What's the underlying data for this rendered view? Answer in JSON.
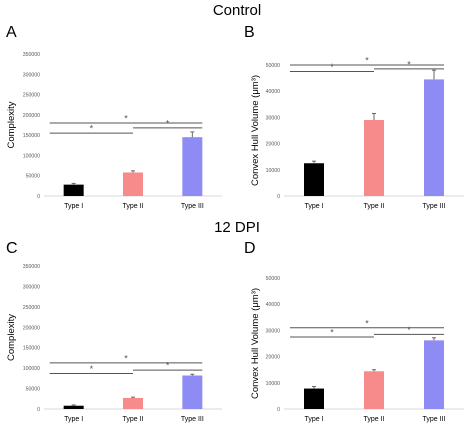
{
  "sections": [
    {
      "title": "Control"
    },
    {
      "title": "12 DPI"
    }
  ],
  "panels": [
    {
      "letter": "A"
    },
    {
      "letter": "B"
    },
    {
      "letter": "C"
    },
    {
      "letter": "D"
    }
  ],
  "colors": {
    "type1": "#000000",
    "type2": "#f78b8b",
    "type3": "#8e8bf5",
    "errorbar": "#666666",
    "sig": "#555555"
  },
  "chart_data": [
    {
      "panel": "A",
      "type": "bar",
      "categories": [
        "Type I",
        "Type II",
        "Type III"
      ],
      "values": [
        28000,
        58000,
        145000
      ],
      "errors": [
        3000,
        4000,
        13000
      ],
      "ylabel": "Complexity",
      "ylim": [
        0,
        350000
      ],
      "yticks": [
        0,
        50000,
        100000,
        150000,
        200000,
        250000,
        300000,
        350000
      ],
      "yticklabels": [
        "0",
        "50000",
        "100000",
        "150000",
        "200000",
        "250000",
        "300000",
        "350000"
      ],
      "significance": [
        {
          "from": 0,
          "to": 1,
          "level": 155000,
          "label": "*"
        },
        {
          "from": 1,
          "to": 2,
          "level": 168000,
          "label": "*"
        },
        {
          "from": 0,
          "to": 2,
          "level": 180000,
          "label": "*"
        }
      ],
      "grid": false
    },
    {
      "panel": "B",
      "type": "bar",
      "categories": [
        "Type I",
        "Type II",
        "Type III"
      ],
      "values": [
        12500,
        29000,
        44500
      ],
      "errors": [
        800,
        2500,
        3500
      ],
      "ylabel": "Convex Hull Volume (μm³)",
      "ylim": [
        0,
        50000
      ],
      "yticks": [
        0,
        10000,
        20000,
        30000,
        40000,
        50000
      ],
      "yticklabels": [
        "0",
        "10000",
        "20000",
        "30000",
        "40000",
        "50000"
      ],
      "significance": [
        {
          "from": 0,
          "to": 1,
          "level": 47500,
          "label": "*"
        },
        {
          "from": 1,
          "to": 2,
          "level": 48500,
          "label": "*"
        },
        {
          "from": 0,
          "to": 2,
          "level": 50000,
          "label": "*"
        }
      ],
      "grid": false
    },
    {
      "panel": "C",
      "type": "bar",
      "categories": [
        "Type I",
        "Type II",
        "Type III"
      ],
      "values": [
        8000,
        27000,
        82000
      ],
      "errors": [
        2000,
        2000,
        3000
      ],
      "ylabel": "Complexity",
      "ylim": [
        0,
        350000
      ],
      "yticks": [
        0,
        50000,
        100000,
        150000,
        200000,
        250000,
        300000,
        350000
      ],
      "yticklabels": [
        "0",
        "50000",
        "100000",
        "150000",
        "200000",
        "250000",
        "300000",
        "350000"
      ],
      "significance": [
        {
          "from": 0,
          "to": 1,
          "level": 87000,
          "label": "*"
        },
        {
          "from": 1,
          "to": 2,
          "level": 95000,
          "label": "*"
        },
        {
          "from": 0,
          "to": 2,
          "level": 113000,
          "label": "*"
        }
      ],
      "grid": false
    },
    {
      "panel": "D",
      "type": "bar",
      "categories": [
        "Type I",
        "Type II",
        "Type III"
      ],
      "values": [
        7800,
        14400,
        26200
      ],
      "errors": [
        800,
        600,
        1000
      ],
      "ylabel": "Convex Hull Volume (μm³)",
      "ylim": [
        0,
        50000
      ],
      "yticks": [
        0,
        10000,
        20000,
        30000,
        40000,
        50000
      ],
      "yticklabels": [
        "0",
        "10000",
        "20000",
        "30000",
        "40000",
        "50000"
      ],
      "significance": [
        {
          "from": 0,
          "to": 1,
          "level": 27500,
          "label": "*"
        },
        {
          "from": 1,
          "to": 2,
          "level": 28500,
          "label": "*"
        },
        {
          "from": 0,
          "to": 2,
          "level": 31000,
          "label": "*"
        }
      ],
      "grid": false
    }
  ]
}
